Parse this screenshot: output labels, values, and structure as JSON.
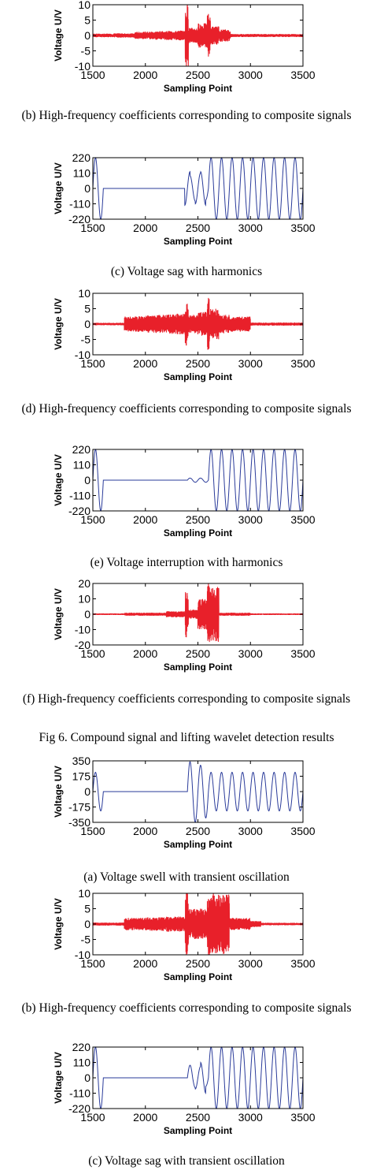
{
  "figure_title": "Fig 6. Compound signal and lifting wavelet detection results",
  "chart_data": [
    {
      "type": "line",
      "color": "#e8202a",
      "caption": "(b) High-frequency coefficients corresponding to composite signals",
      "xlabel": "Sampling Point",
      "ylabel": "Voltage U/V",
      "xlim": [
        1500,
        3500
      ],
      "ylim": [
        -10,
        10
      ],
      "xticks": [
        1500,
        2000,
        2500,
        3000,
        3500
      ],
      "yticks": [
        10,
        5,
        0,
        -5,
        -10
      ],
      "series": [
        {
          "x": [
            1500,
            1700,
            1900,
            2000,
            2100,
            2200,
            2300,
            2380,
            2390,
            2400,
            2410,
            2420,
            2500,
            2560,
            2590,
            2600,
            2610,
            2620,
            2700,
            2800,
            2810,
            3000,
            3200,
            3500
          ],
          "y": [
            0.5,
            -0.6,
            0.7,
            -1.2,
            1.3,
            -1.4,
            1.5,
            -1.6,
            -10,
            10,
            -3,
            2,
            -2.5,
            4,
            -3.5,
            7,
            -6,
            3,
            -2,
            1.5,
            0.5,
            -0.5,
            0.5,
            0
          ]
        }
      ]
    },
    {
      "type": "line",
      "color": "#2a3b9a",
      "caption": "(c) Voltage sag with harmonics",
      "xlabel": "Sampling Point",
      "ylabel": "Voltage U/V",
      "xlim": [
        1500,
        3500
      ],
      "ylim": [
        -220,
        220
      ],
      "xticks": [
        1500,
        2000,
        2500,
        3000,
        3500
      ],
      "yticks": [
        220,
        110,
        0,
        -110,
        -220
      ],
      "series": [
        {
          "x": [
            1500,
            1525,
            1550,
            1575,
            1600,
            2375,
            2400,
            2425,
            2450,
            2475,
            2500,
            2525,
            2550,
            2575,
            2600,
            2625,
            3500
          ],
          "y": [
            0,
            220,
            0,
            -220,
            0,
            0,
            120,
            60,
            -90,
            90,
            -110,
            50,
            -120,
            80,
            0,
            220,
            0
          ]
        }
      ]
    },
    {
      "type": "line",
      "color": "#e8202a",
      "caption": "(d) High-frequency coefficients corresponding to composite signals",
      "xlabel": "Sampling Point",
      "ylabel": "Voltage U/V",
      "xlim": [
        1500,
        3500
      ],
      "ylim": [
        -10,
        10
      ],
      "xticks": [
        1500,
        2000,
        2500,
        3000,
        3500
      ],
      "yticks": [
        10,
        5,
        0,
        -5,
        -10
      ],
      "series": [
        {
          "x": [
            1500,
            1800,
            2000,
            2100,
            2200,
            2300,
            2380,
            2390,
            2400,
            2410,
            2500,
            2590,
            2600,
            2610,
            2700,
            2800,
            3000,
            3500
          ],
          "y": [
            0.4,
            -0.4,
            2.5,
            -2.8,
            3,
            -3.2,
            3.5,
            -7,
            5,
            -3,
            3,
            -4,
            8.5,
            -5,
            3,
            -2.5,
            0.5,
            0
          ]
        }
      ]
    },
    {
      "type": "line",
      "color": "#2a3b9a",
      "caption": "(e) Voltage interruption with harmonics",
      "xlabel": "Sampling Point",
      "ylabel": "Voltage U/V",
      "xlim": [
        1500,
        3500
      ],
      "ylim": [
        -220,
        220
      ],
      "xticks": [
        1500,
        2000,
        2500,
        3000,
        3500
      ],
      "yticks": [
        220,
        110,
        0,
        -110,
        -220
      ],
      "series": [
        {
          "x": [
            1500,
            1525,
            1550,
            1575,
            1600,
            2400,
            2450,
            2500,
            2550,
            2600,
            2625,
            3500
          ],
          "y": [
            0,
            220,
            0,
            -220,
            0,
            0,
            15,
            -15,
            15,
            0,
            220,
            0
          ]
        }
      ]
    },
    {
      "type": "line",
      "color": "#e8202a",
      "caption": "(f) High-frequency coefficients corresponding to composite signals",
      "xlabel": "Sampling Point",
      "ylabel": "Voltage U/V",
      "xlim": [
        1500,
        3500
      ],
      "ylim": [
        -20,
        20
      ],
      "xticks": [
        1500,
        2000,
        2500,
        3000,
        3500
      ],
      "yticks": [
        20,
        10,
        0,
        -10,
        -20
      ],
      "series": [
        {
          "x": [
            1500,
            1800,
            2000,
            2200,
            2380,
            2390,
            2400,
            2410,
            2500,
            2590,
            2600,
            2610,
            2700,
            3000,
            3500
          ],
          "y": [
            0.5,
            -0.5,
            1,
            -1,
            2,
            -15,
            12,
            -3,
            1.5,
            -10,
            20,
            -18,
            1,
            0.5,
            0
          ]
        }
      ]
    },
    {
      "type": "line",
      "color": "#2a3b9a",
      "caption": "(a) Voltage swell with transient oscillation",
      "xlabel": "Sampling Point",
      "ylabel": "Voltage U/V",
      "xlim": [
        1500,
        3500
      ],
      "ylim": [
        -350,
        350
      ],
      "xticks": [
        1500,
        2000,
        2500,
        3000,
        3500
      ],
      "yticks": [
        350,
        175,
        0,
        -175,
        -350
      ],
      "series": [
        {
          "x": [
            1500,
            1525,
            1550,
            1575,
            1600,
            2400,
            2425,
            2450,
            2475,
            2500,
            2600,
            2625,
            2650,
            2675,
            3500
          ],
          "y": [
            0,
            220,
            0,
            -220,
            0,
            0,
            340,
            0,
            -350,
            300,
            0,
            220,
            0,
            -220,
            0
          ]
        }
      ]
    },
    {
      "type": "line",
      "color": "#e8202a",
      "caption": "(b) High-frequency coefficients corresponding to composite signals",
      "xlabel": "Sampling Point",
      "ylabel": "Voltage U/V",
      "xlim": [
        1500,
        3500
      ],
      "ylim": [
        -10,
        10
      ],
      "xticks": [
        1500,
        2000,
        2500,
        3000,
        3500
      ],
      "yticks": [
        10,
        5,
        0,
        -5,
        -10
      ],
      "series": [
        {
          "x": [
            1500,
            1800,
            2000,
            2200,
            2380,
            2390,
            2400,
            2410,
            2500,
            2590,
            2600,
            2610,
            2800,
            3000,
            3100,
            3500
          ],
          "y": [
            0.5,
            -0.5,
            2,
            -2.2,
            2.5,
            -10,
            10,
            -5,
            2.5,
            -5,
            8,
            -10,
            2,
            -1,
            0.4,
            0
          ]
        }
      ]
    },
    {
      "type": "line",
      "color": "#2a3b9a",
      "caption": "(c) Voltage sag with transient oscillation",
      "xlabel": "Sampling Point",
      "ylabel": "Voltage U/V",
      "xlim": [
        1500,
        3500
      ],
      "ylim": [
        -220,
        220
      ],
      "xticks": [
        1500,
        2000,
        2500,
        3000,
        3500
      ],
      "yticks": [
        220,
        110,
        0,
        -110,
        -220
      ],
      "series": [
        {
          "x": [
            1500,
            1525,
            1550,
            1575,
            1600,
            2400,
            2425,
            2450,
            2475,
            2500,
            2525,
            2550,
            2575,
            2600,
            2625,
            3500
          ],
          "y": [
            0,
            220,
            0,
            -220,
            0,
            0,
            90,
            -30,
            70,
            -80,
            40,
            -110,
            60,
            0,
            220,
            0
          ]
        }
      ]
    }
  ]
}
